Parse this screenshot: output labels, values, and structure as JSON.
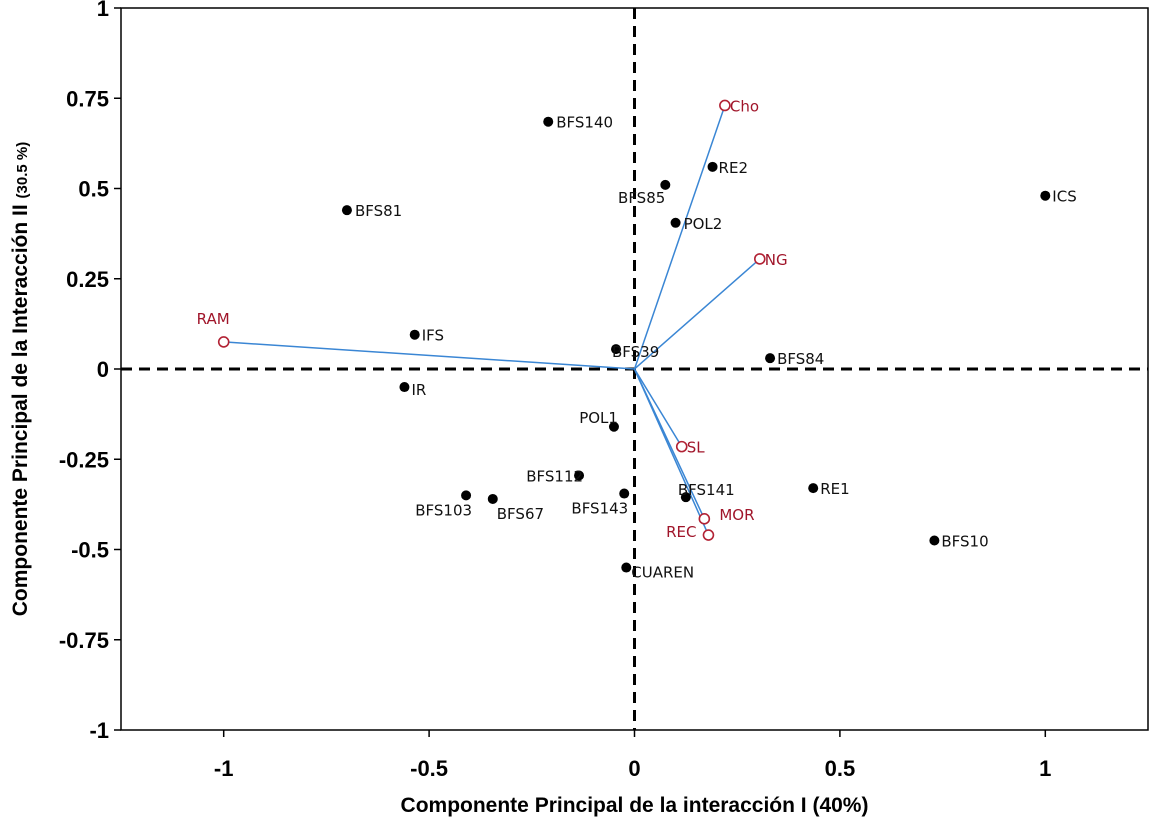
{
  "chart_data": {
    "type": "scatter",
    "title": "",
    "xlabel": "Componente Principal de la interacción I (40%)",
    "ylabel": "Componente Principal de la Interacción II",
    "ylabel_pct": "(30.5 %)",
    "xlim": [
      -1.25,
      1.25
    ],
    "ylim": [
      -1,
      1
    ],
    "xticks": [
      {
        "value": -1,
        "label": "-1"
      },
      {
        "value": -0.5,
        "label": "-0.5"
      },
      {
        "value": 0,
        "label": "0"
      },
      {
        "value": 0.5,
        "label": "0.5"
      },
      {
        "value": 1,
        "label": "1"
      }
    ],
    "yticks": [
      {
        "value": 1,
        "label": "1"
      },
      {
        "value": 0.75,
        "label": "0.75"
      },
      {
        "value": 0.5,
        "label": "0.5"
      },
      {
        "value": 0.25,
        "label": "0.25"
      },
      {
        "value": 0,
        "label": "0"
      },
      {
        "value": -0.25,
        "label": "-0.25"
      },
      {
        "value": -0.5,
        "label": "-0.5"
      },
      {
        "value": -0.75,
        "label": "-0.75"
      },
      {
        "value": -1,
        "label": "-1"
      }
    ],
    "grid": false,
    "reference_lines": "dashed lines at x=0 and y=0",
    "series": [
      {
        "name": "",
        "marker": "filled-circle",
        "color": "#000000",
        "points": [
          {
            "label": "BFS140",
            "x": -0.21,
            "y": 0.685
          },
          {
            "label": "RE2",
            "x": 0.19,
            "y": 0.56
          },
          {
            "label": "BFS85",
            "x": 0.075,
            "y": 0.51
          },
          {
            "label": "POL2",
            "x": 0.1,
            "y": 0.405
          },
          {
            "label": "ICS",
            "x": 1.0,
            "y": 0.48
          },
          {
            "label": "BFS81",
            "x": -0.7,
            "y": 0.44
          },
          {
            "label": "IFS",
            "x": -0.535,
            "y": 0.095
          },
          {
            "label": "BFS39",
            "x": -0.045,
            "y": 0.055
          },
          {
            "label": "BFS84",
            "x": 0.33,
            "y": 0.03
          },
          {
            "label": "IR",
            "x": -0.56,
            "y": -0.05
          },
          {
            "label": "POL1",
            "x": -0.05,
            "y": -0.16
          },
          {
            "label": "BFS112",
            "x": -0.135,
            "y": -0.295
          },
          {
            "label": "BFS103",
            "x": -0.41,
            "y": -0.35
          },
          {
            "label": "BFS67",
            "x": -0.345,
            "y": -0.36
          },
          {
            "label": "BFS143",
            "x": -0.025,
            "y": -0.345
          },
          {
            "label": "BFS141",
            "x": 0.125,
            "y": -0.355
          },
          {
            "label": "RE1",
            "x": 0.435,
            "y": -0.33
          },
          {
            "label": "BFS10",
            "x": 0.73,
            "y": -0.475
          },
          {
            "label": "CUAREN",
            "x": -0.02,
            "y": -0.55
          }
        ]
      },
      {
        "name": "",
        "marker": "open-circle-vector",
        "color": "#b22234",
        "line_color": "#3a86d4",
        "points": [
          {
            "label": "Cho",
            "x": 0.22,
            "y": 0.73
          },
          {
            "label": "NG",
            "x": 0.305,
            "y": 0.305
          },
          {
            "label": "RAM",
            "x": -1.0,
            "y": 0.075
          },
          {
            "label": "SL",
            "x": 0.115,
            "y": -0.215
          },
          {
            "label": "MOR",
            "x": 0.17,
            "y": -0.415
          },
          {
            "label": "REC",
            "x": 0.18,
            "y": -0.46
          }
        ]
      }
    ]
  }
}
